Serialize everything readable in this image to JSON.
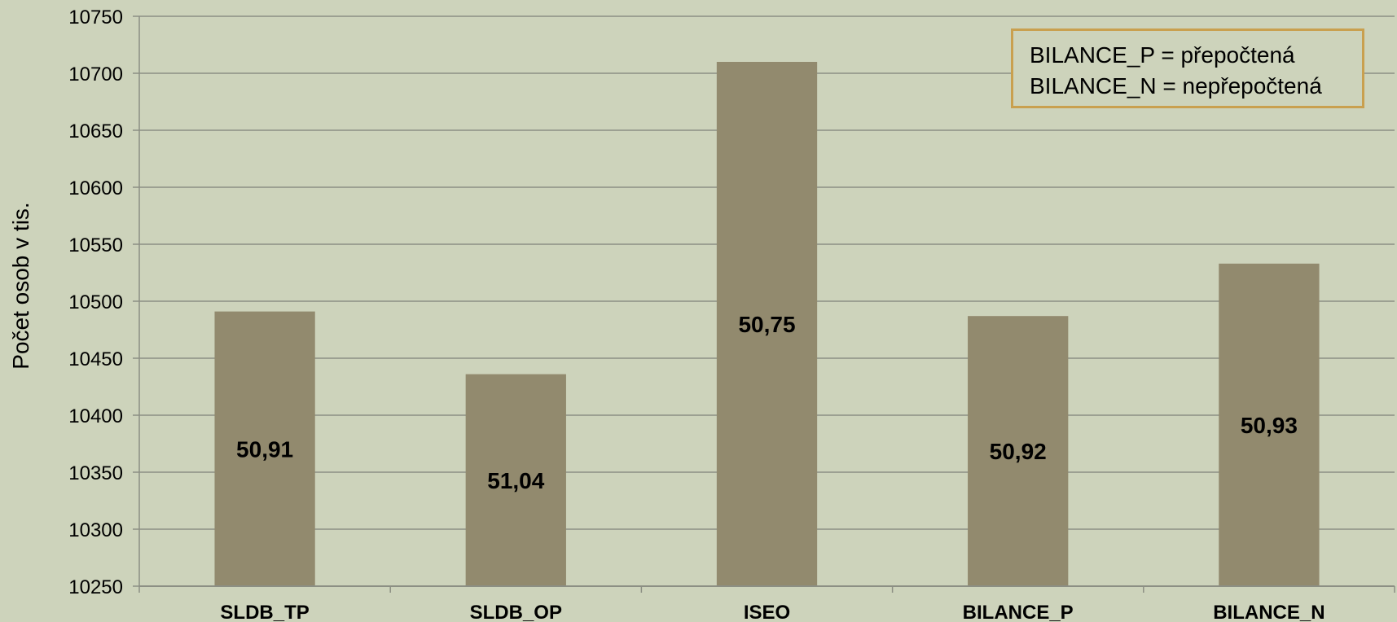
{
  "chart_data": {
    "type": "bar",
    "categories": [
      "SLDB_TP",
      "SLDB_OP",
      "ISEO",
      "BILANCE_P",
      "BILANCE_N"
    ],
    "values": [
      10491,
      10436,
      10710,
      10487,
      10533
    ],
    "data_labels": [
      "50,91",
      "51,04",
      "50,75",
      "50,92",
      "50,93"
    ],
    "ylabel": "Počet osob v tis.",
    "ylim": [
      10250,
      10750
    ],
    "yticks": [
      10250,
      10300,
      10350,
      10400,
      10450,
      10500,
      10550,
      10600,
      10650,
      10700,
      10750
    ],
    "grid": true,
    "bar_color": "#928a6e",
    "background": "#cdd3bb",
    "legend_note": {
      "placement": "top-right",
      "lines": [
        "BILANCE_P = přepočtená",
        "BILANCE_N = nepřepočtená"
      ],
      "border_color": "#c9a04f"
    }
  }
}
